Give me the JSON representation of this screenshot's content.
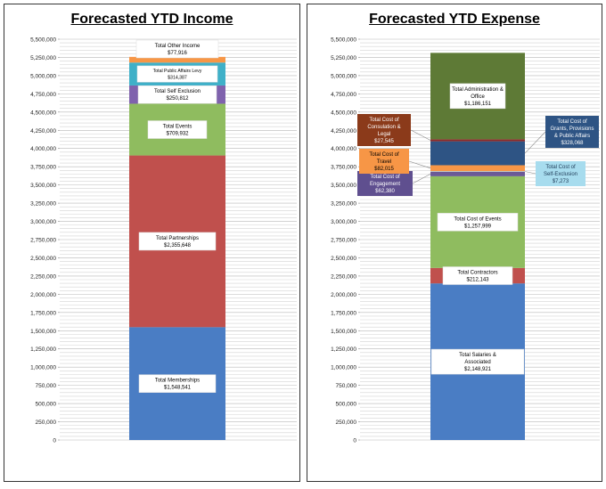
{
  "chart_data": [
    {
      "type": "bar",
      "title": "Forecasted YTD Income",
      "xlabel": "",
      "ylabel": "",
      "ylim": [
        0,
        5500000
      ],
      "ytick_labels": [
        "0",
        "250,000",
        "500,000",
        "750,000",
        "1,000,000",
        "1,250,000",
        "1,500,000",
        "1,750,000",
        "2,000,000",
        "2,250,000",
        "2,500,000",
        "2,750,000",
        "3,000,000",
        "3,250,000",
        "3,500,000",
        "3,750,000",
        "4,000,000",
        "4,250,000",
        "4,500,000",
        "4,750,000",
        "5,000,000",
        "5,250,000",
        "5,500,000"
      ],
      "stacked": true,
      "grid": "horizontal-minor",
      "series": [
        {
          "name": "Total Memberships",
          "value": 1548541,
          "value_label": "$1,548,541",
          "color": "#4a7dc4"
        },
        {
          "name": "Total Partnerships",
          "value": 2355648,
          "value_label": "$2,355,648",
          "color": "#c0504d"
        },
        {
          "name": "Total Events",
          "value": 709932,
          "value_label": "$709,932",
          "color": "#8fbc5f"
        },
        {
          "name": "Total Self Exclusion",
          "value": 250812,
          "value_label": "$250,812",
          "color": "#7f62ad"
        },
        {
          "name": "Total Public Affairs Levy",
          "value": 314387,
          "value_label": "$314,387",
          "color": "#3fb0c8"
        },
        {
          "name": "Total Other Income",
          "value": 77916,
          "value_label": "$77,916",
          "color": "#f79646"
        }
      ]
    },
    {
      "type": "bar",
      "title": "Forecasted YTD Expense",
      "xlabel": "",
      "ylabel": "",
      "ylim": [
        0,
        5500000
      ],
      "ytick_labels": [
        "0",
        "250,000",
        "500,000",
        "750,000",
        "1,000,000",
        "1,250,000",
        "1,500,000",
        "1,750,000",
        "2,000,000",
        "2,250,000",
        "2,500,000",
        "2,750,000",
        "3,000,000",
        "3,250,000",
        "3,500,000",
        "3,750,000",
        "4,000,000",
        "4,250,000",
        "4,500,000",
        "4,750,000",
        "5,000,000",
        "5,250,000",
        "5,500,000"
      ],
      "stacked": true,
      "grid": "horizontal-minor",
      "series": [
        {
          "name": "Total Salaries & Associated",
          "value": 2148921,
          "value_label": "$2,148,921",
          "color": "#4a7dc4"
        },
        {
          "name": "Total Contractors",
          "value": 212143,
          "value_label": "$212,143",
          "color": "#c0504d"
        },
        {
          "name": "Total Cost of Events",
          "value": 1257999,
          "value_label": "$1,257,999",
          "color": "#8fbc5f"
        },
        {
          "name": "Total Cost of Engagement",
          "value": 62380,
          "value_label": "$62,380",
          "color": "#6b5a96"
        },
        {
          "name": "Total Cost of Self-Exclusion",
          "value": 7273,
          "value_label": "$7,273",
          "color": "#9bd3e8"
        },
        {
          "name": "Total Cost of Travel",
          "value": 82015,
          "value_label": "$82,015",
          "color": "#f79646"
        },
        {
          "name": "Total Cost of Grants, Provisions & Public Affairs",
          "value": 328068,
          "value_label": "$328,068",
          "color": "#2e5484"
        },
        {
          "name": "Total Cost of Consulation & Legal",
          "value": 27545,
          "value_label": "$27,545",
          "color": "#8b2a2a"
        },
        {
          "name": "Total Administration & Office",
          "value": 1186151,
          "value_label": "$1,186,151",
          "color": "#5e7a36"
        }
      ]
    }
  ]
}
